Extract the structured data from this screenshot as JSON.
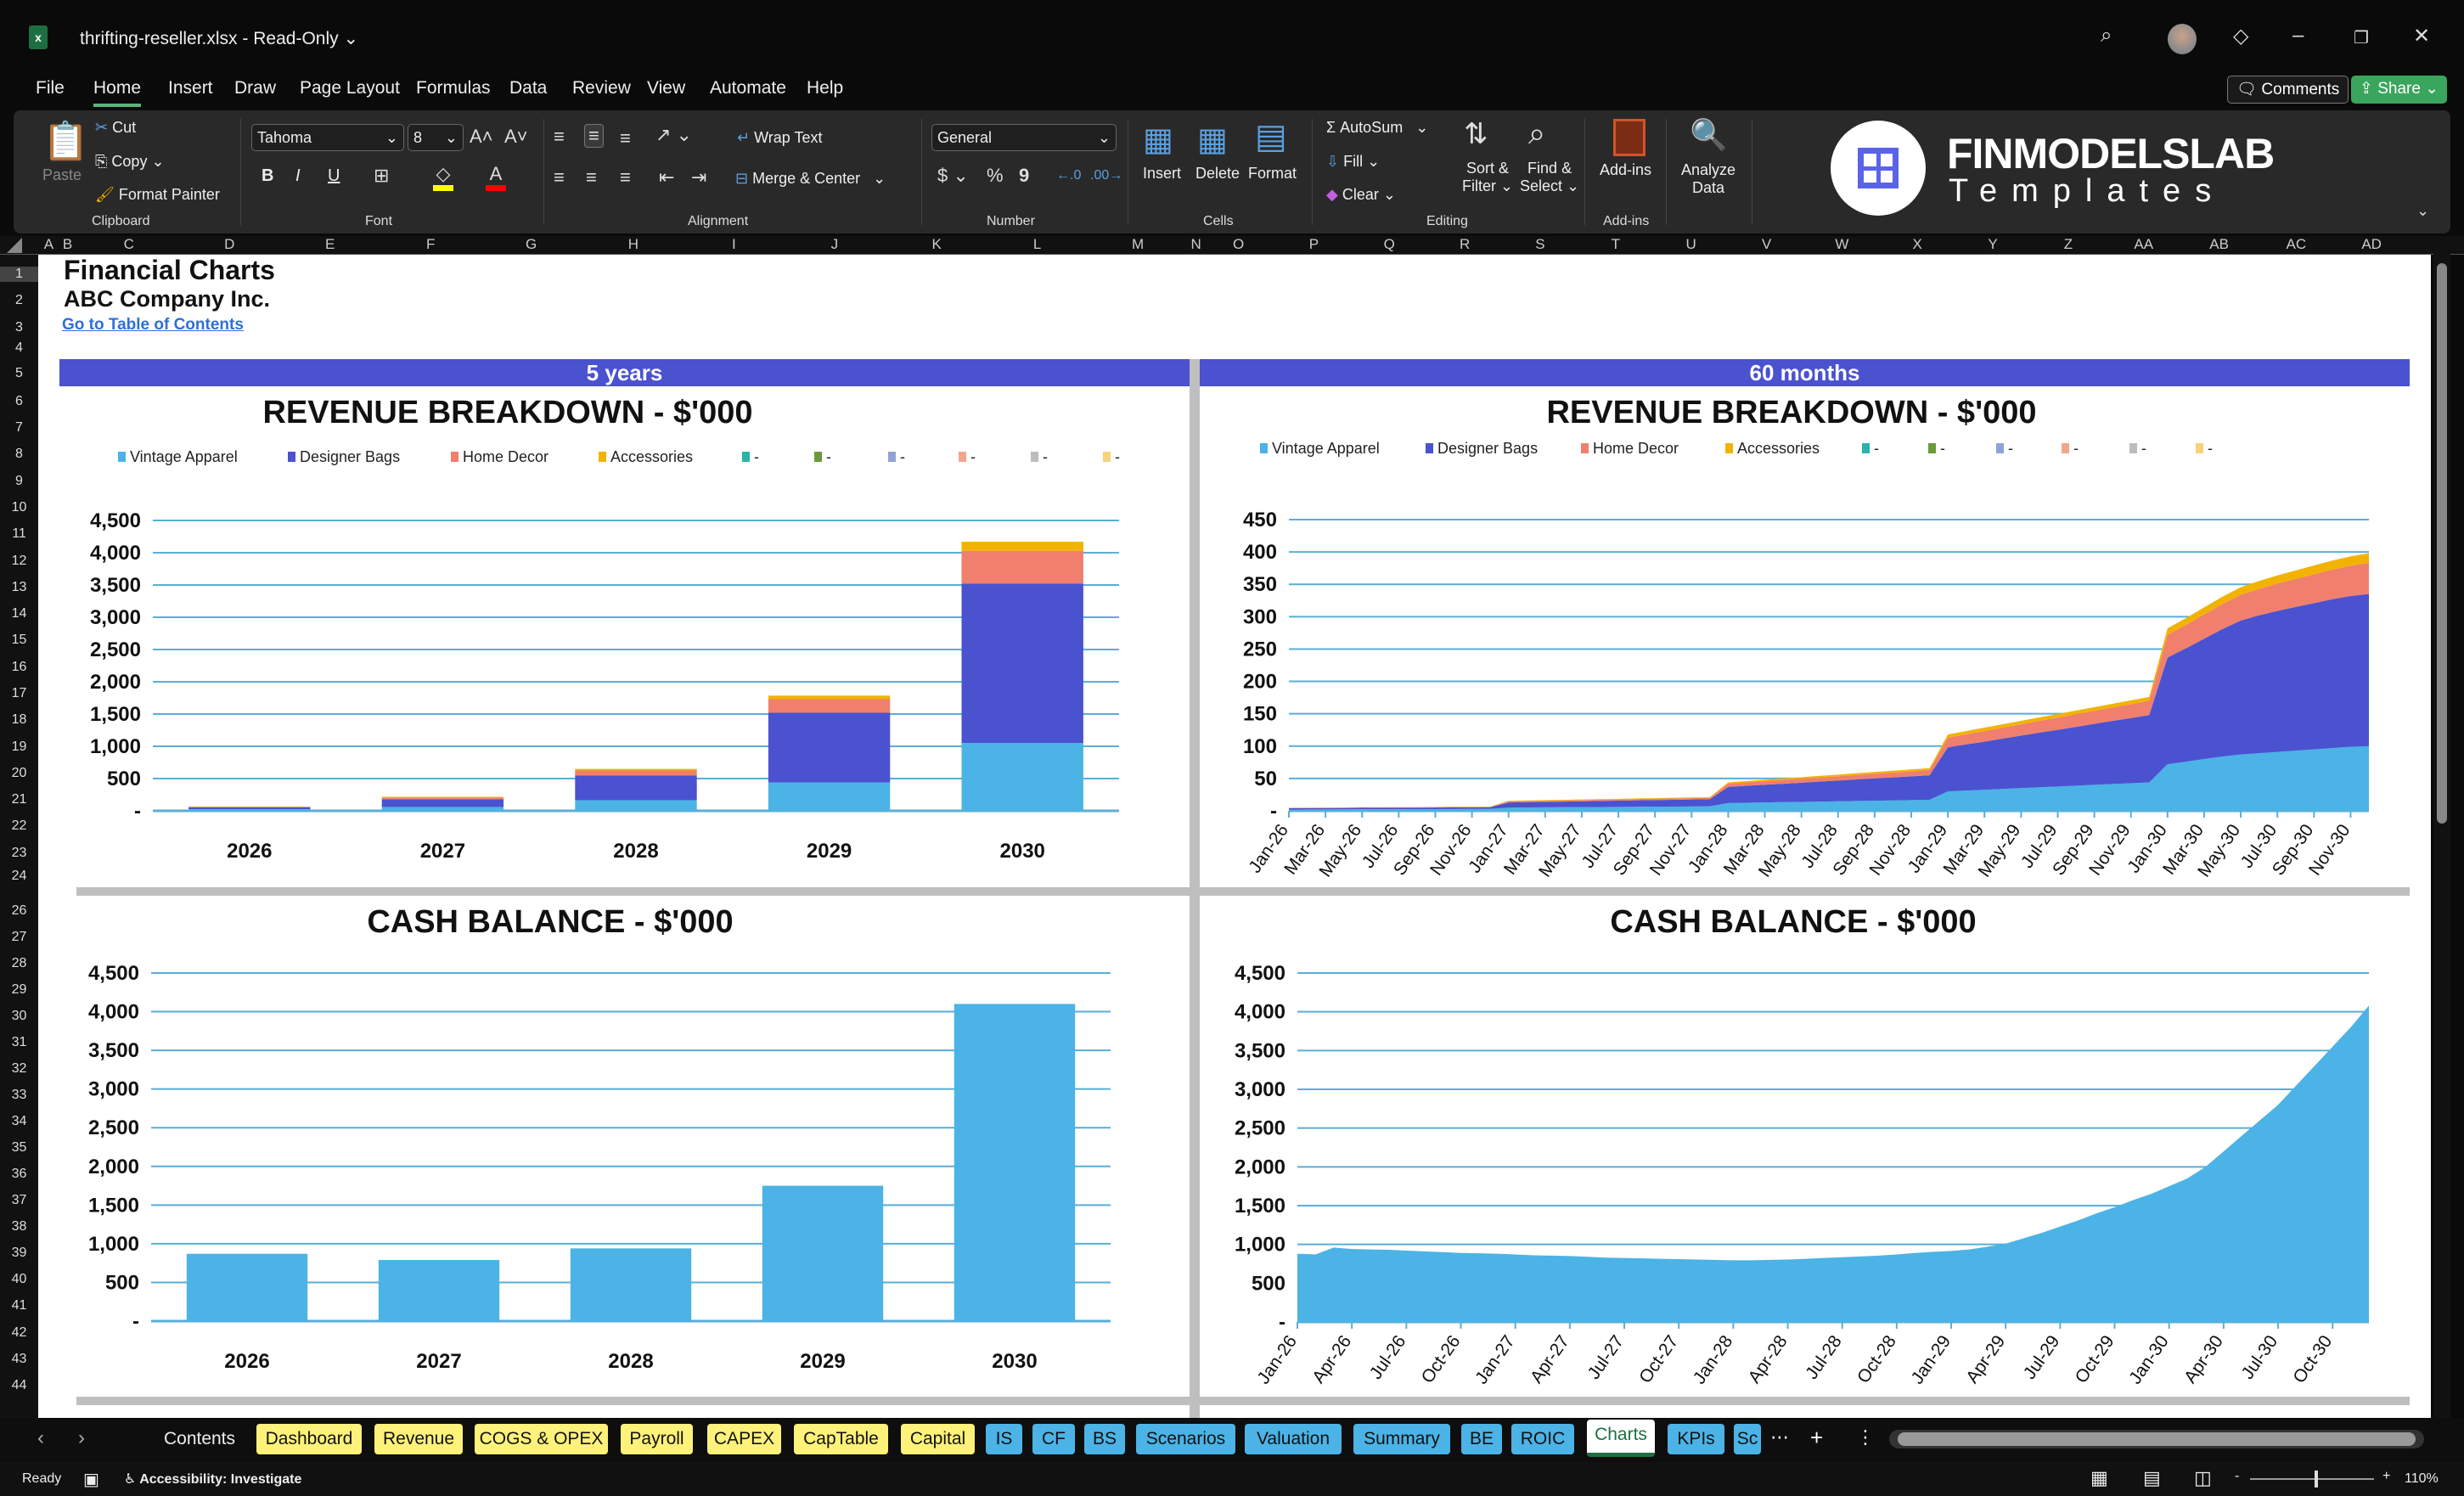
{
  "titlebar": {
    "filename": "thrifting-reseller.xlsx",
    "separator": "-",
    "mode": "Read-Only",
    "chevron": "⌄",
    "icons": [
      "excel-icon",
      "search-icon",
      "avatar",
      "diamond-icon",
      "minimize-icon",
      "restore-icon",
      "close-icon"
    ]
  },
  "menu": {
    "items": [
      "File",
      "Home",
      "Insert",
      "Draw",
      "Page Layout",
      "Formulas",
      "Data",
      "Review",
      "View",
      "Automate",
      "Help"
    ],
    "active": "Home",
    "comments_label": "Comments",
    "share_label": "Share"
  },
  "ribbon": {
    "clipboard": {
      "paste": "Paste",
      "cut": "Cut",
      "copy": "Copy",
      "format_painter": "Format Painter",
      "group": "Clipboard"
    },
    "font": {
      "font_name": "Tahoma",
      "font_size": "8",
      "bold": "B",
      "italic": "I",
      "underline": "U",
      "group": "Font",
      "fill_color": "#FFFF00",
      "font_color": "#FF0000"
    },
    "alignment": {
      "wrap_text": "Wrap Text",
      "merge_center": "Merge & Center",
      "group": "Alignment"
    },
    "number": {
      "format": "General",
      "currency": "$",
      "percent": "%",
      "comma": "9",
      "group": "Number"
    },
    "cells": {
      "insert": "Insert",
      "delete": "Delete",
      "format": "Format",
      "group": "Cells"
    },
    "editing": {
      "autosum": "AutoSum",
      "fill": "Fill",
      "clear": "Clear",
      "sort_filter_1": "Sort &",
      "sort_filter_2": "Filter",
      "find_select_1": "Find &",
      "find_select_2": "Select",
      "group": "Editing"
    },
    "addins": {
      "addins": "Add-ins",
      "group": "Add-ins",
      "analyze_1": "Analyze",
      "analyze_2": "Data"
    },
    "logo": {
      "brand": "FINMODELSLAB",
      "sub": "Templates",
      "color": "#5B63E8"
    }
  },
  "grid": {
    "columns": [
      "A",
      "B",
      "C",
      "D",
      "E",
      "F",
      "G",
      "H",
      "I",
      "J",
      "K",
      "L",
      "M",
      "N",
      "O",
      "P",
      "Q",
      "R",
      "S",
      "T",
      "U",
      "V",
      "W",
      "X",
      "Y",
      "Z",
      "AA",
      "AB",
      "AC",
      "AD"
    ],
    "rows": [
      "1",
      "2",
      "3",
      "4",
      "5",
      "6",
      "7",
      "8",
      "9",
      "10",
      "11",
      "12",
      "13",
      "14",
      "15",
      "16",
      "17",
      "18",
      "19",
      "20",
      "21",
      "22",
      "23",
      "24",
      "26",
      "27",
      "28",
      "29",
      "30",
      "31",
      "32",
      "33",
      "34",
      "35",
      "36",
      "37",
      "38",
      "39",
      "40",
      "41",
      "42",
      "43",
      "44"
    ]
  },
  "sheet": {
    "title": "Financial Charts",
    "company": "ABC Company Inc.",
    "toc_link": "Go to Table of Contents",
    "band_left": "5 years",
    "band_right": "60 months",
    "band_color": "#4A52D0"
  },
  "legend": [
    {
      "name": "Vintage Apparel",
      "color": "#4BB3E6"
    },
    {
      "name": "Designer Bags",
      "color": "#4A52D0"
    },
    {
      "name": "Home Decor",
      "color": "#F07F6E"
    },
    {
      "name": "Accessories",
      "color": "#F2B300"
    },
    {
      "name": "-",
      "color": "#2BB3A8"
    },
    {
      "name": "-",
      "color": "#6A9A3A"
    },
    {
      "name": "-",
      "color": "#8FA3D8"
    },
    {
      "name": "-",
      "color": "#F2A68C"
    },
    {
      "name": "-",
      "color": "#BDBDBD"
    },
    {
      "name": "-",
      "color": "#F7D27C"
    }
  ],
  "chart_data": [
    {
      "id": "rev-annual",
      "type": "bar",
      "stacked": true,
      "title": "REVENUE BREAKDOWN - $'000",
      "categories": [
        "2026",
        "2027",
        "2028",
        "2029",
        "2030"
      ],
      "ylim": [
        0,
        4500
      ],
      "yticks": [
        "-",
        "500",
        "1,000",
        "1,500",
        "2,000",
        "2,500",
        "3,000",
        "3,500",
        "4,000",
        "4,500"
      ],
      "grid": true,
      "legend": "top",
      "series": [
        {
          "name": "Vintage Apparel",
          "values": [
            25,
            60,
            165,
            440,
            1050
          ]
        },
        {
          "name": "Designer Bags",
          "values": [
            30,
            120,
            385,
            1080,
            2470
          ]
        },
        {
          "name": "Home Decor",
          "values": [
            8,
            25,
            75,
            210,
            510
          ]
        },
        {
          "name": "Accessories",
          "values": [
            5,
            12,
            25,
            55,
            140
          ]
        }
      ]
    },
    {
      "id": "rev-monthly",
      "type": "area",
      "stacked": true,
      "title": "REVENUE BREAKDOWN - $'000",
      "ylim": [
        0,
        450
      ],
      "yticks": [
        "-",
        "50",
        "100",
        "150",
        "200",
        "250",
        "300",
        "350",
        "400",
        "450"
      ],
      "grid": true,
      "legend": "top",
      "label_every": 2,
      "categories": [
        "Jan-26",
        "Feb-26",
        "Mar-26",
        "Apr-26",
        "May-26",
        "Jun-26",
        "Jul-26",
        "Aug-26",
        "Sep-26",
        "Oct-26",
        "Nov-26",
        "Dec-26",
        "Jan-27",
        "Feb-27",
        "Mar-27",
        "Apr-27",
        "May-27",
        "Jun-27",
        "Jul-27",
        "Aug-27",
        "Sep-27",
        "Oct-27",
        "Nov-27",
        "Dec-27",
        "Jan-28",
        "Feb-28",
        "Mar-28",
        "Apr-28",
        "May-28",
        "Jun-28",
        "Jul-28",
        "Aug-28",
        "Sep-28",
        "Oct-28",
        "Nov-28",
        "Dec-28",
        "Jan-29",
        "Feb-29",
        "Mar-29",
        "Apr-29",
        "May-29",
        "Jun-29",
        "Jul-29",
        "Aug-29",
        "Sep-29",
        "Oct-29",
        "Nov-29",
        "Dec-29",
        "Jan-30",
        "Feb-30",
        "Mar-30",
        "Apr-30",
        "May-30",
        "Jun-30",
        "Jul-30",
        "Aug-30",
        "Sep-30",
        "Oct-30",
        "Nov-30",
        "Dec-30"
      ],
      "series": [
        {
          "name": "Vintage Apparel",
          "values": [
            2.0,
            2.1,
            2.2,
            2.3,
            2.4,
            2.5,
            2.5,
            2.6,
            2.7,
            2.8,
            2.9,
            3.0,
            5.0,
            5.2,
            5.4,
            5.5,
            5.7,
            5.9,
            6.1,
            6.3,
            6.5,
            6.6,
            6.8,
            7.0,
            12,
            12.5,
            13,
            13.4,
            13.8,
            14.3,
            14.7,
            15.2,
            15.6,
            16.1,
            16.5,
            17,
            30,
            31.3,
            32.5,
            33.8,
            35.1,
            36.4,
            37.6,
            38.9,
            40.2,
            41.5,
            42.7,
            44,
            72,
            76,
            80,
            84,
            87,
            89,
            91,
            93,
            95,
            97,
            99,
            100
          ]
        },
        {
          "name": "Designer Bags",
          "values": [
            2,
            2,
            2.1,
            2.1,
            2.2,
            2.2,
            2.3,
            2.3,
            2.4,
            2.4,
            2.5,
            2.5,
            8,
            8.3,
            8.5,
            8.8,
            9.1,
            9.4,
            9.6,
            9.9,
            10.2,
            10.5,
            10.7,
            11,
            25,
            26.2,
            27.4,
            28.5,
            29.7,
            30.9,
            32.1,
            33.3,
            34.5,
            35.6,
            36.8,
            38,
            68,
            71.3,
            74.5,
            77.8,
            81.1,
            84.4,
            87.6,
            90.9,
            94.2,
            97.5,
            100.7,
            104,
            165,
            175,
            186,
            197,
            207,
            213,
            218,
            222,
            226,
            230,
            233,
            235
          ]
        },
        {
          "name": "Home Decor",
          "values": [
            0.5,
            0.5,
            0.5,
            0.5,
            0.6,
            0.6,
            0.6,
            0.6,
            0.6,
            0.7,
            0.7,
            0.7,
            1.5,
            1.6,
            1.6,
            1.7,
            1.8,
            1.8,
            1.9,
            2.0,
            2.0,
            2.1,
            2.2,
            2.2,
            5,
            5.3,
            5.5,
            5.8,
            6.1,
            6.4,
            6.6,
            6.9,
            7.2,
            7.5,
            7.7,
            8,
            15,
            15.6,
            16.3,
            16.9,
            17.5,
            18.2,
            18.8,
            19.5,
            20.1,
            20.7,
            21.4,
            22,
            35,
            36.2,
            37.4,
            38.5,
            39.7,
            40.9,
            42.1,
            43.3,
            44.5,
            45.6,
            46.8,
            48
          ]
        },
        {
          "name": "Accessories",
          "values": [
            0.3,
            0.3,
            0.3,
            0.3,
            0.3,
            0.3,
            0.3,
            0.3,
            0.3,
            0.3,
            0.3,
            0.3,
            1,
            1,
            1,
            1,
            1,
            1,
            1,
            1,
            1,
            1,
            1,
            1,
            2,
            2.1,
            2.2,
            2.3,
            2.4,
            2.5,
            2.5,
            2.6,
            2.7,
            2.8,
            2.9,
            3,
            5,
            5.1,
            5.2,
            5.3,
            5.4,
            5.5,
            5.5,
            5.6,
            5.7,
            5.8,
            5.9,
            6,
            10,
            10.5,
            11,
            11.4,
            11.8,
            12.3,
            12.7,
            13.2,
            13.6,
            14.1,
            14.5,
            15
          ]
        }
      ]
    },
    {
      "id": "cash-annual",
      "type": "bar",
      "title": "CASH BALANCE - $'000",
      "categories": [
        "2026",
        "2027",
        "2028",
        "2029",
        "2030"
      ],
      "ylim": [
        0,
        4500
      ],
      "yticks": [
        "-",
        "500",
        "1,000",
        "1,500",
        "2,000",
        "2,500",
        "3,000",
        "3,500",
        "4,000",
        "4,500"
      ],
      "grid": true,
      "color": "#4BB3E6",
      "series": [
        {
          "values": [
            870,
            790,
            940,
            1750,
            4100
          ]
        }
      ]
    },
    {
      "id": "cash-monthly",
      "type": "area",
      "title": "CASH BALANCE - $'000",
      "ylim": [
        0,
        4500
      ],
      "yticks": [
        "-",
        "500",
        "1,000",
        "1,500",
        "2,000",
        "2,500",
        "3,000",
        "3,500",
        "4,000",
        "4,500"
      ],
      "grid": true,
      "color": "#4BB3E6",
      "label_every": 3,
      "categories": [
        "Jan-26",
        "Feb-26",
        "Mar-26",
        "Apr-26",
        "May-26",
        "Jun-26",
        "Jul-26",
        "Aug-26",
        "Sep-26",
        "Oct-26",
        "Nov-26",
        "Dec-26",
        "Jan-27",
        "Feb-27",
        "Mar-27",
        "Apr-27",
        "May-27",
        "Jun-27",
        "Jul-27",
        "Aug-27",
        "Sep-27",
        "Oct-27",
        "Nov-27",
        "Dec-27",
        "Jan-28",
        "Feb-28",
        "Mar-28",
        "Apr-28",
        "May-28",
        "Jun-28",
        "Jul-28",
        "Aug-28",
        "Sep-28",
        "Oct-28",
        "Nov-28",
        "Dec-28",
        "Jan-29",
        "Feb-29",
        "Mar-29",
        "Apr-29",
        "May-29",
        "Jun-29",
        "Jul-29",
        "Aug-29",
        "Sep-29",
        "Oct-29",
        "Nov-29",
        "Dec-29",
        "Jan-30",
        "Feb-30",
        "Mar-30",
        "Apr-30",
        "May-30",
        "Jun-30",
        "Jul-30",
        "Aug-30",
        "Sep-30",
        "Oct-30",
        "Nov-30",
        "Dec-30"
      ],
      "series": [
        {
          "values": [
            880,
            870,
            960,
            940,
            935,
            930,
            920,
            910,
            900,
            890,
            885,
            880,
            870,
            860,
            855,
            850,
            840,
            830,
            825,
            820,
            815,
            810,
            805,
            800,
            795,
            795,
            800,
            805,
            815,
            825,
            835,
            845,
            855,
            870,
            890,
            905,
            915,
            935,
            970,
            1010,
            1080,
            1150,
            1230,
            1310,
            1400,
            1480,
            1570,
            1650,
            1750,
            1850,
            2000,
            2200,
            2400,
            2600,
            2800,
            3050,
            3300,
            3550,
            3800,
            4080
          ]
        }
      ]
    }
  ],
  "tabs": {
    "items": [
      {
        "label": "Contents",
        "color": "none"
      },
      {
        "label": "Dashboard",
        "color": "#FFF27A"
      },
      {
        "label": "Revenue",
        "color": "#FFF27A"
      },
      {
        "label": "COGS & OPEX",
        "color": "#FFF27A"
      },
      {
        "label": "Payroll",
        "color": "#FFF27A"
      },
      {
        "label": "CAPEX",
        "color": "#FFF27A"
      },
      {
        "label": "CapTable",
        "color": "#FFF27A"
      },
      {
        "label": "Capital",
        "color": "#FFF27A"
      },
      {
        "label": "IS",
        "color": "#4BB3E6"
      },
      {
        "label": "CF",
        "color": "#4BB3E6"
      },
      {
        "label": "BS",
        "color": "#4BB3E6"
      },
      {
        "label": "Scenarios",
        "color": "#4BB3E6"
      },
      {
        "label": "Valuation",
        "color": "#4BB3E6"
      },
      {
        "label": "Summary",
        "color": "#4BB3E6"
      },
      {
        "label": "BE",
        "color": "#4BB3E6"
      },
      {
        "label": "ROIC",
        "color": "#4BB3E6"
      },
      {
        "label": "Charts",
        "color": "active"
      },
      {
        "label": "KPIs",
        "color": "#4BB3E6"
      },
      {
        "label": "Sc",
        "color": "#4BB3E6"
      }
    ],
    "active": "Charts",
    "more": "⋯",
    "add": "+",
    "options": "⋮"
  },
  "status": {
    "ready": "Ready",
    "accessibility": "Accessibility: Investigate",
    "zoom": "110%"
  }
}
